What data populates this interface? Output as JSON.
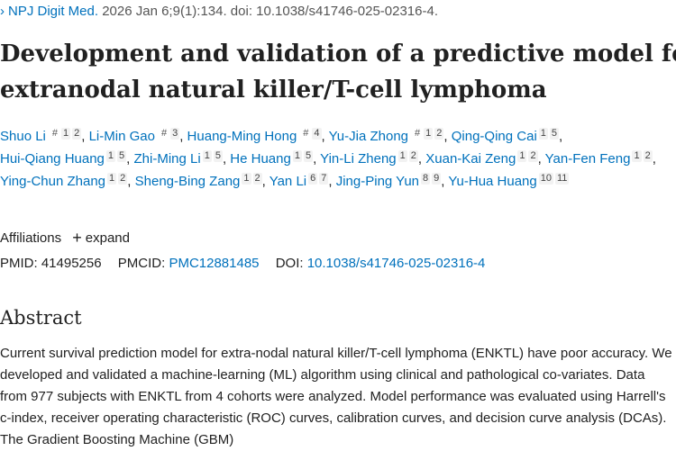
{
  "citation": {
    "journal": "NPJ Digit Med.",
    "details": "2026 Jan 6;9(1):134. doi: 10.1038/s41746-025-02316-4."
  },
  "title_line1": "Development and validation of a predictive model for",
  "title_line2": "extranodal natural killer/T-cell lymphoma",
  "authors": [
    {
      "name": "Shuo Li",
      "eq": "#",
      "affs": [
        "1",
        "2"
      ]
    },
    {
      "name": "Li-Min Gao",
      "eq": "#",
      "affs": [
        "3"
      ]
    },
    {
      "name": "Huang-Ming Hong",
      "eq": "#",
      "affs": [
        "4"
      ]
    },
    {
      "name": "Yu-Jia Zhong",
      "eq": "#",
      "affs": [
        "1",
        "2"
      ]
    },
    {
      "name": "Qing-Qing Cai",
      "eq": "",
      "affs": [
        "1",
        "5"
      ]
    },
    {
      "name": "Hui-Qiang Huang",
      "eq": "",
      "affs": [
        "1",
        "5"
      ]
    },
    {
      "name": "Zhi-Ming Li",
      "eq": "",
      "affs": [
        "1",
        "5"
      ]
    },
    {
      "name": "He Huang",
      "eq": "",
      "affs": [
        "1",
        "5"
      ]
    },
    {
      "name": "Yin-Li Zheng",
      "eq": "",
      "affs": [
        "1",
        "2"
      ]
    },
    {
      "name": "Xuan-Kai Zeng",
      "eq": "",
      "affs": [
        "1",
        "2"
      ]
    },
    {
      "name": "Yan-Fen Feng",
      "eq": "",
      "affs": [
        "1",
        "2"
      ]
    },
    {
      "name": "Ying-Chun Zhang",
      "eq": "",
      "affs": [
        "1",
        "2"
      ]
    },
    {
      "name": "Sheng-Bing Zang",
      "eq": "",
      "affs": [
        "1",
        "2"
      ]
    },
    {
      "name": "Yan Li",
      "eq": "",
      "affs": [
        "6",
        "7"
      ]
    },
    {
      "name": "Jing-Ping Yun",
      "eq": "",
      "affs": [
        "8",
        "9"
      ]
    },
    {
      "name": "Yu-Hua Huang",
      "eq": "",
      "affs": [
        "10",
        "11"
      ]
    }
  ],
  "affiliations": {
    "label": "Affiliations",
    "expand_label": "expand"
  },
  "identifiers": {
    "pmid_label": "PMID:",
    "pmid": "41495256",
    "pmcid_label": "PMCID:",
    "pmcid": "PMC12881485",
    "doi_label": "DOI:",
    "doi": "10.1038/s41746-025-02316-4"
  },
  "abstract": {
    "heading": "Abstract",
    "text": "Current survival prediction model for extra-nodal natural killer/T-cell lymphoma (ENKTL) have poor accuracy. We developed and validated a machine-learning (ML) algorithm using clinical and pathological co-variates. Data from 977 subjects with ENKTL from 4 cohorts were analyzed. Model performance was evaluated using Harrell's c-index, receiver operating characteristic (ROC) curves, calibration curves, and decision curve analysis (DCAs). The Gradient Boosting Machine (GBM)"
  }
}
